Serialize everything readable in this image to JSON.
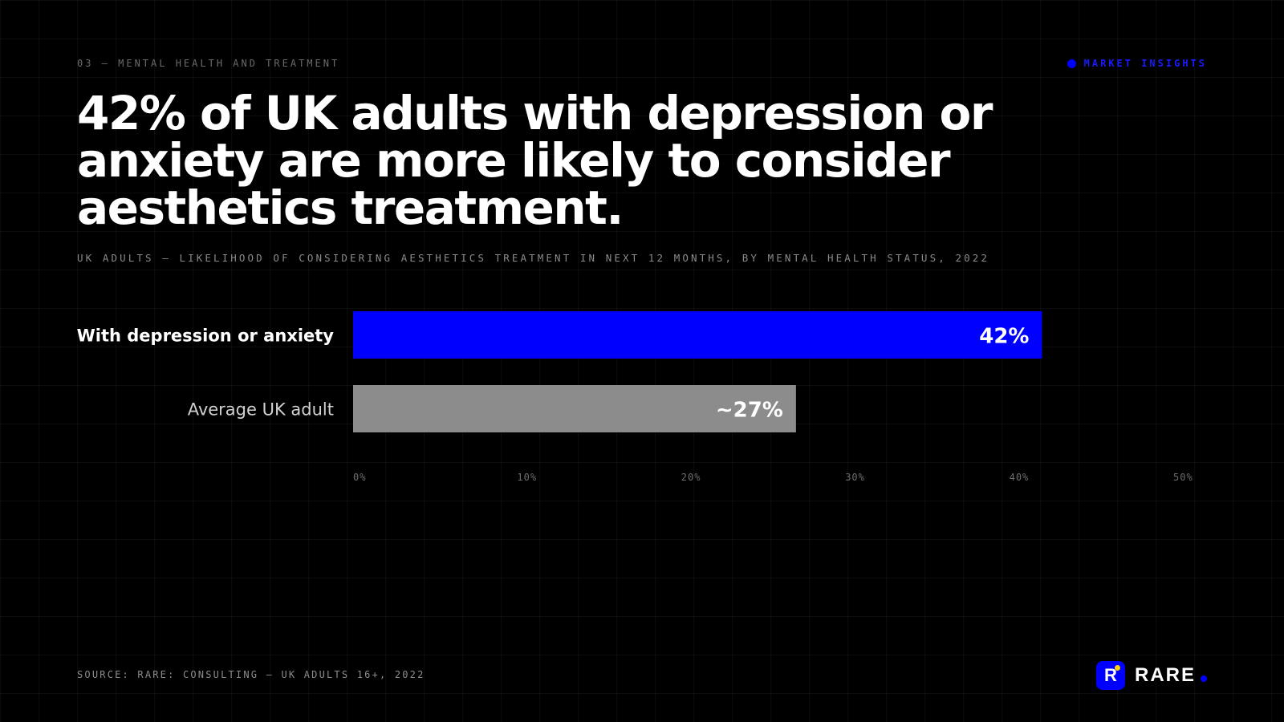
{
  "header": {
    "eyebrow": "03 — MENTAL HEALTH AND TREATMENT",
    "badge": "MARKET INSIGHTS"
  },
  "headline": "42% of UK adults with depression or anxiety are more likely to consider aesthetics treatment.",
  "chart_data": {
    "type": "bar",
    "orientation": "horizontal",
    "subtitle": "UK ADULTS — LIKELIHOOD OF CONSIDERING AESTHETICS TREATMENT IN NEXT 12 MONTHS, BY MENTAL HEALTH STATUS, 2022",
    "categories": [
      "With depression or anxiety",
      "Average UK adult"
    ],
    "values": [
      42,
      27
    ],
    "value_labels": [
      "42%",
      "~27%"
    ],
    "colors": [
      "#0000ff",
      "#8c8c8c"
    ],
    "xlim": [
      0,
      50
    ],
    "ticks": [
      0,
      10,
      20,
      30,
      40,
      50
    ],
    "tick_labels": [
      "0%",
      "10%",
      "20%",
      "30%",
      "40%",
      "50%"
    ],
    "grid": false,
    "legend": "none"
  },
  "footer": {
    "source": "SOURCE: RARE: CONSULTING — UK ADULTS 16+, 2022",
    "logo_letter": "R",
    "logo_word": "RARE"
  },
  "colors": {
    "accent": "#0000ff",
    "muted_bar": "#8c8c8c",
    "background": "#000000",
    "logo_spark": "#ffd400"
  }
}
